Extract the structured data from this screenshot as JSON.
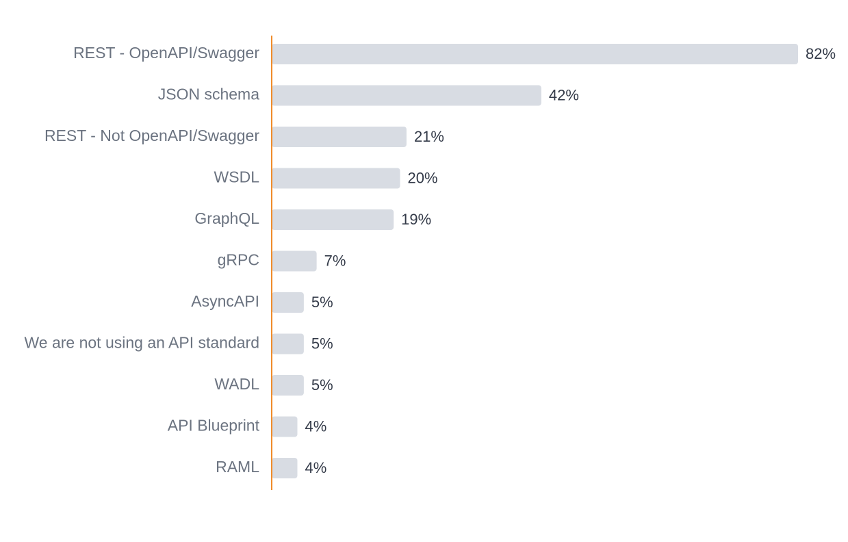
{
  "chart_data": {
    "type": "bar",
    "orientation": "horizontal",
    "title": "",
    "xlabel": "",
    "ylabel": "",
    "xlim": [
      0,
      82
    ],
    "grid": false,
    "unit": "%",
    "categories": [
      "REST - OpenAPI/Swagger",
      "JSON schema",
      "REST - Not OpenAPI/Swagger",
      "WSDL",
      "GraphQL",
      "gRPC",
      "AsyncAPI",
      "We are not using an API standard",
      "WADL",
      "API Blueprint",
      "RAML"
    ],
    "values": [
      82,
      42,
      21,
      20,
      19,
      7,
      5,
      5,
      5,
      4,
      4
    ],
    "value_labels": [
      "82%",
      "42%",
      "21%",
      "20%",
      "19%",
      "7%",
      "5%",
      "5%",
      "5%",
      "4%",
      "4%"
    ]
  },
  "colors": {
    "bar": "#d8dce3",
    "axis": "#f08c2a",
    "category_text": "#6b7380",
    "value_text": "#333a48",
    "background": "#ffffff"
  }
}
